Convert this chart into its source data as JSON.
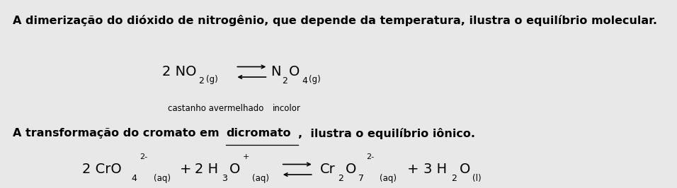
{
  "bg_color": "#e8e8e8",
  "line1_bold": "A dimerização do dióxido de nitrogênio, que depende da temperatura, ilustra o equilíbrio molecular.",
  "line2_part1": "A transformação do cromato em ",
  "line2_underline": "dicromato",
  "line2_part2": ",  ilustra o equilíbrio iônico.",
  "caption1": "castanho avermelhado",
  "caption2": "incolor",
  "font_bold_size": 11.5,
  "font_chem_size": 14
}
